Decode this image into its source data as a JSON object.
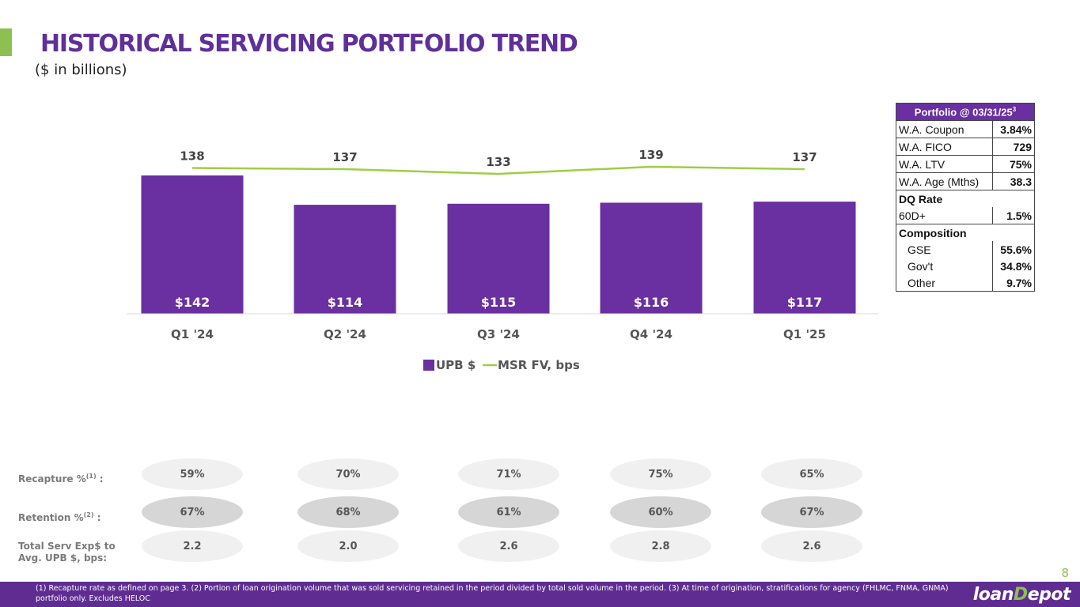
{
  "header": {
    "title": "HISTORICAL SERVICING PORTFOLIO TREND",
    "subtitle": "($ in billions)"
  },
  "colors": {
    "brand_purple": "#6a2fa0",
    "accent_green": "#8dc050"
  },
  "chart_data": {
    "type": "bar",
    "categories": [
      "Q1 '24",
      "Q2 '24",
      "Q3 '24",
      "Q4 '24",
      "Q1 '25"
    ],
    "series": [
      {
        "name": "UPB $",
        "kind": "bar",
        "values": [
          142,
          114,
          115,
          116,
          117
        ],
        "labels": [
          "$142",
          "$114",
          "$115",
          "$116",
          "$117"
        ]
      },
      {
        "name": "MSR FV, bps",
        "kind": "line",
        "values": [
          138,
          137,
          133,
          139,
          137
        ],
        "labels": [
          "138",
          "137",
          "133",
          "139",
          "137"
        ]
      }
    ],
    "legend": {
      "position": "bottom",
      "items": [
        "UPB $",
        "MSR FV, bps"
      ]
    },
    "grid": false,
    "title": "",
    "xlabel": "",
    "ylabel": ""
  },
  "portfolio": {
    "title": "Portfolio @ 03/31/25",
    "title_sup": "3",
    "rows": [
      {
        "label": "W.A. Coupon",
        "value": "3.84%"
      },
      {
        "label": "W.A. FICO",
        "value": "729"
      },
      {
        "label": "W.A. LTV",
        "value": "75%"
      },
      {
        "label": "W.A. Age (Mths)",
        "value": "38.3"
      }
    ],
    "dq": {
      "heading": "DQ Rate",
      "label": "60D+",
      "value": "1.5%"
    },
    "composition": {
      "heading": "Composition",
      "rows": [
        {
          "label": "GSE",
          "value": "55.6%"
        },
        {
          "label": "Gov't",
          "value": "34.8%"
        },
        {
          "label": "Other",
          "value": "9.7%"
        }
      ]
    }
  },
  "metrics": {
    "recapture": {
      "label": "Recapture %",
      "sup": "(1)",
      "suffix": " :",
      "values": [
        "59%",
        "70%",
        "71%",
        "75%",
        "65%"
      ]
    },
    "retention": {
      "label": "Retention %",
      "sup": "(2)",
      "suffix": " :",
      "values": [
        "67%",
        "68%",
        "61%",
        "60%",
        "67%"
      ]
    },
    "serv_exp": {
      "label_line1": "Total Serv Exp$ to",
      "label_line2": "Avg. UPB $, bps:",
      "values": [
        "2.2",
        "2.0",
        "2.6",
        "2.8",
        "2.6"
      ]
    }
  },
  "footer": {
    "page_number": "8",
    "footnote": "(1) Recapture rate as defined on page 3. (2) Portion of loan origination volume that was sold servicing retained in the period divided by total sold volume in the period. (3) At time of origination, stratifications for agency (FHLMC, FNMA, GNMA) portfolio only. Excludes HELOC",
    "logo_part1": "loan",
    "logo_part2": "D",
    "logo_part3": "epot"
  }
}
